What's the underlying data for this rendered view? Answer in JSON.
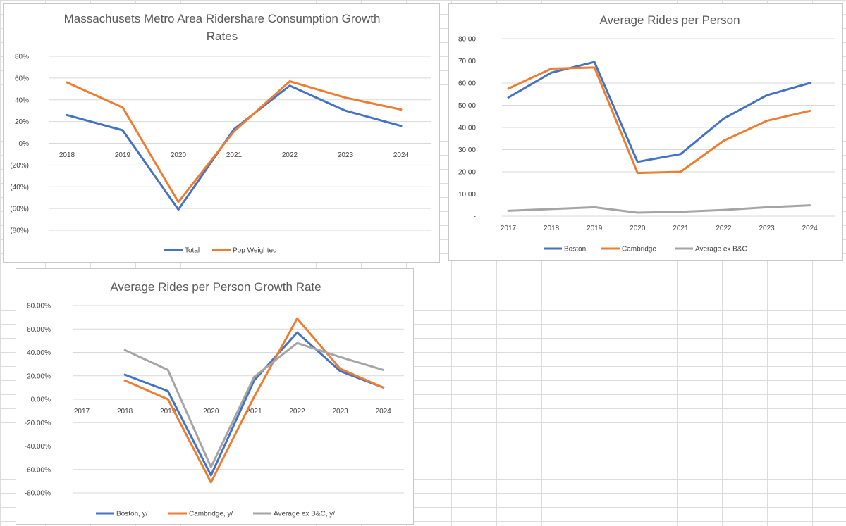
{
  "chart_data": [
    {
      "type": "line",
      "title_lines": [
        "Massachusets Metro Area Ridershare Consumption Growth",
        "Rates"
      ],
      "categories": [
        "2018",
        "2019",
        "2020",
        "2021",
        "2022",
        "2023",
        "2024"
      ],
      "yticks": [
        "80%",
        "60%",
        "40%",
        "20%",
        "0%",
        "(20%)",
        "(40%)",
        "(60%)",
        "(80%)"
      ],
      "ylim": [
        -0.8,
        0.8
      ],
      "grid": true,
      "legend_position": "bottom",
      "series": [
        {
          "name": "Total",
          "color": "#4472c4",
          "values": [
            0.26,
            0.12,
            -0.61,
            0.13,
            0.53,
            0.3,
            0.16
          ]
        },
        {
          "name": "Pop Weighted",
          "color": "#ed7d31",
          "values": [
            0.56,
            0.33,
            -0.54,
            0.11,
            0.57,
            0.42,
            0.31
          ]
        }
      ]
    },
    {
      "type": "line",
      "title_lines": [
        "Average Rides per Person"
      ],
      "categories": [
        "2017",
        "2018",
        "2019",
        "2020",
        "2021",
        "2022",
        "2023",
        "2024"
      ],
      "yticks": [
        "80.00",
        "70.00",
        "60.00",
        "50.00",
        "40.00",
        "30.00",
        "20.00",
        "10.00",
        "-"
      ],
      "ylim": [
        0,
        80
      ],
      "grid": true,
      "legend_position": "bottom",
      "series": [
        {
          "name": "Boston",
          "color": "#4472c4",
          "values": [
            53.5,
            64.7,
            69.5,
            24.5,
            28.0,
            44.0,
            54.5,
            60.0
          ]
        },
        {
          "name": "Cambridge",
          "color": "#ed7d31",
          "values": [
            57.5,
            66.5,
            67.0,
            19.5,
            20.0,
            34.0,
            43.0,
            47.5
          ]
        },
        {
          "name": "Average ex B&C",
          "color": "#a5a5a5",
          "values": [
            2.4,
            3.2,
            4.0,
            1.6,
            2.0,
            2.8,
            4.0,
            4.9
          ]
        }
      ]
    },
    {
      "type": "line",
      "title_lines": [
        "Average Rides per Person Growth Rate"
      ],
      "categories": [
        "2017",
        "2018",
        "2019",
        "2020",
        "2021",
        "2022",
        "2023",
        "2024"
      ],
      "yticks": [
        "80.00%",
        "60.00%",
        "40.00%",
        "20.00%",
        "0.00%",
        "-20.00%",
        "-40.00%",
        "-60.00%",
        "-80.00%"
      ],
      "ylim": [
        -0.8,
        0.8
      ],
      "grid": true,
      "legend_position": "bottom",
      "series": [
        {
          "name": "Boston, y/",
          "color": "#4472c4",
          "values": [
            null,
            0.21,
            0.07,
            -0.65,
            0.16,
            0.57,
            0.24,
            0.1
          ]
        },
        {
          "name": "Cambridge, y/",
          "color": "#ed7d31",
          "values": [
            null,
            0.16,
            0.0,
            -0.71,
            0.02,
            0.69,
            0.26,
            0.1
          ]
        },
        {
          "name": "Average ex B&C, y/",
          "color": "#a5a5a5",
          "values": [
            null,
            0.42,
            0.25,
            -0.58,
            0.19,
            0.48,
            0.36,
            0.25
          ]
        }
      ]
    }
  ]
}
